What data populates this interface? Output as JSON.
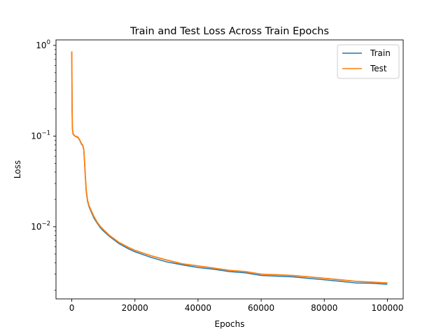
{
  "chart_data": {
    "type": "line",
    "title": "Train and Test Loss Across Train Epochs",
    "xlabel": "Epochs",
    "ylabel": "Loss",
    "xlim": [
      -5000,
      105000
    ],
    "ylim": [
      0.0016,
      1.15
    ],
    "yscale": "log",
    "legend_position": "top-right",
    "x_ticks": [
      {
        "value": 0,
        "label": "0"
      },
      {
        "value": 20000,
        "label": "20000"
      },
      {
        "value": 40000,
        "label": "40000"
      },
      {
        "value": 60000,
        "label": "60000"
      },
      {
        "value": 80000,
        "label": "80000"
      },
      {
        "value": 100000,
        "label": "100000"
      }
    ],
    "y_ticks": [
      {
        "value": 1,
        "base": "10",
        "exp": "0"
      },
      {
        "value": 0.1,
        "base": "10",
        "exp": "−1"
      },
      {
        "value": 0.01,
        "base": "10",
        "exp": "−2"
      }
    ],
    "series": [
      {
        "name": "Train",
        "color": "#1f77b4",
        "x": [
          0,
          50,
          100,
          200,
          400,
          700,
          1000,
          1500,
          2000,
          2500,
          3000,
          3500,
          3800,
          4000,
          4300,
          4600,
          5000,
          5500,
          6000,
          7000,
          8000,
          9000,
          10000,
          12000,
          15000,
          18000,
          20000,
          25000,
          30000,
          35000,
          40000,
          45000,
          50000,
          55000,
          60000,
          65000,
          70000,
          75000,
          80000,
          85000,
          90000,
          95000,
          100000
        ],
        "y": [
          0.85,
          0.4,
          0.2,
          0.12,
          0.105,
          0.102,
          0.1,
          0.098,
          0.096,
          0.09,
          0.082,
          0.078,
          0.07,
          0.055,
          0.035,
          0.024,
          0.019,
          0.0165,
          0.015,
          0.0125,
          0.011,
          0.0098,
          0.009,
          0.0078,
          0.0065,
          0.0057,
          0.0053,
          0.0046,
          0.0041,
          0.0038,
          0.00355,
          0.0034,
          0.0032,
          0.0031,
          0.0029,
          0.00285,
          0.0028,
          0.0027,
          0.0026,
          0.0025,
          0.0024,
          0.00238,
          0.00232
        ]
      },
      {
        "name": "Test",
        "color": "#ff7f0e",
        "x": [
          0,
          50,
          100,
          200,
          400,
          700,
          1000,
          1500,
          2000,
          2500,
          3000,
          3500,
          3800,
          4000,
          4300,
          4600,
          5000,
          5500,
          6000,
          7000,
          8000,
          9000,
          10000,
          12000,
          15000,
          18000,
          20000,
          25000,
          30000,
          35000,
          40000,
          45000,
          50000,
          55000,
          60000,
          65000,
          70000,
          75000,
          80000,
          85000,
          90000,
          95000,
          100000
        ],
        "y": [
          0.86,
          0.42,
          0.21,
          0.12,
          0.106,
          0.103,
          0.1,
          0.099,
          0.097,
          0.091,
          0.083,
          0.079,
          0.071,
          0.056,
          0.036,
          0.025,
          0.0195,
          0.017,
          0.0155,
          0.013,
          0.0113,
          0.0101,
          0.0093,
          0.008,
          0.0067,
          0.0059,
          0.0055,
          0.0048,
          0.0043,
          0.0039,
          0.0037,
          0.0035,
          0.0033,
          0.0032,
          0.003,
          0.00295,
          0.0029,
          0.0028,
          0.0027,
          0.0026,
          0.0025,
          0.00245,
          0.0024
        ]
      }
    ]
  }
}
